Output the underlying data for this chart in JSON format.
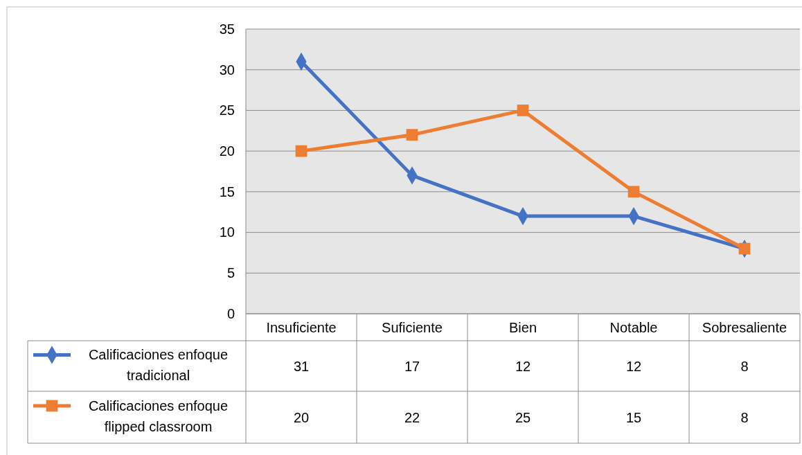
{
  "chart_data": {
    "type": "line",
    "categories": [
      "Insuficiente",
      "Suficiente",
      "Bien",
      "Notable",
      "Sobresaliente"
    ],
    "series": [
      {
        "name": "Calificaciones enfoque tradicional",
        "color": "#4472c4",
        "marker": "diamond",
        "values": [
          31,
          17,
          12,
          12,
          8
        ]
      },
      {
        "name": "Calificaciones enfoque flipped classroom",
        "color": "#ed7d31",
        "marker": "square",
        "values": [
          20,
          22,
          25,
          15,
          8
        ]
      }
    ],
    "ylim": [
      0,
      35
    ],
    "yticks": [
      0,
      5,
      10,
      15,
      20,
      25,
      30,
      35
    ],
    "grid": "y",
    "legend": "bottom",
    "data_labels": true
  }
}
